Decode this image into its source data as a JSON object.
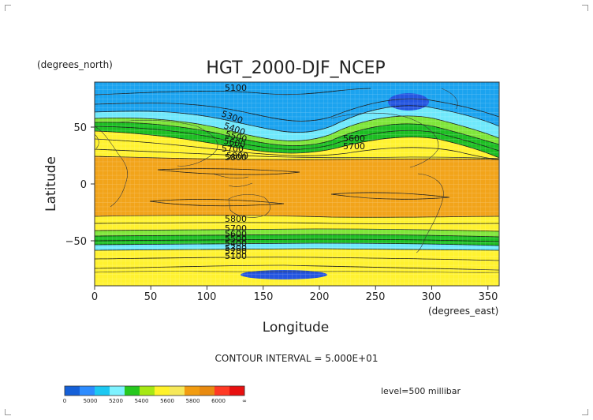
{
  "title": "HGT_2000-DJF_NCEP",
  "y_units": "(degrees_north)",
  "x_units": "(degrees_east)",
  "xlabel": "Longitude",
  "ylabel": "Latitude",
  "x_ticks": [
    "0",
    "50",
    "100",
    "150",
    "200",
    "250",
    "300",
    "350"
  ],
  "y_ticks": [
    "50",
    "0",
    "−50"
  ],
  "contour_interval_text": "CONTOUR INTERVAL = 5.000E+01",
  "level_text": "level=500 millibar",
  "contour_labels": [
    "5100",
    "5300",
    "5400",
    "5500",
    "5600",
    "5700",
    "5800",
    "5600",
    "5700",
    "5800",
    "5800",
    "5700",
    "5600",
    "5500",
    "5400",
    "5300",
    "5200",
    "5100"
  ],
  "colorbar": {
    "labels": [
      "0",
      "5000",
      "5200",
      "5400",
      "5600",
      "5800",
      "6000",
      "∞"
    ],
    "colors": [
      "#1560d8",
      "#2d8cff",
      "#1cc8f2",
      "#7ef2ff",
      "#26c81e",
      "#a6e814",
      "#fff22a",
      "#f6e85a",
      "#f29c10",
      "#e88a10",
      "#ff3a24",
      "#e81010"
    ]
  },
  "map_colors": {
    "polar": "#1ba3ef",
    "blue_low": "#2455e0",
    "cyan": "#6fe8fb",
    "light_green": "#7fe63a",
    "green": "#1cbe22",
    "yellow": "#fff230",
    "orange": "#f2a41a"
  }
}
